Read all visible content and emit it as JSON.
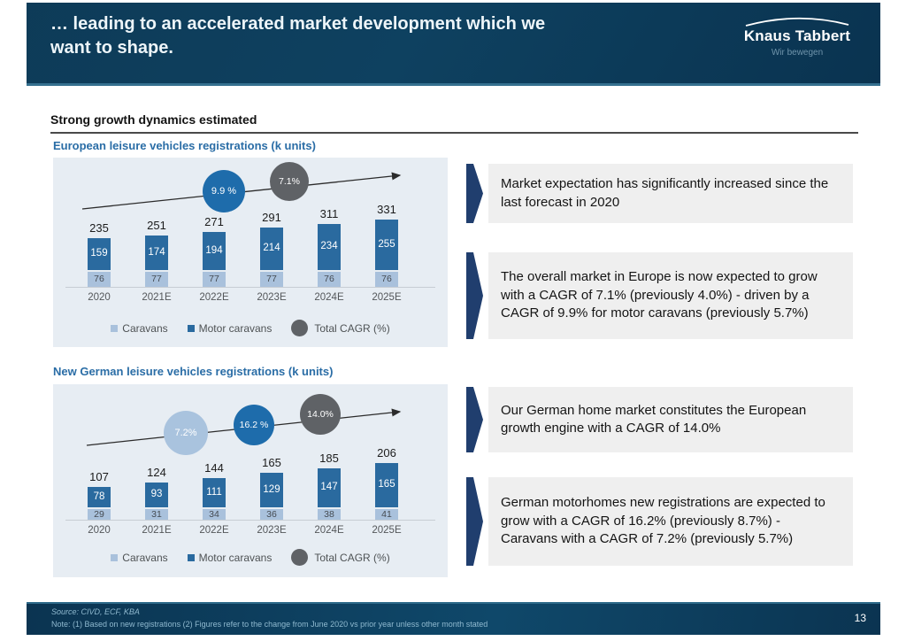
{
  "header": {
    "title_lines": [
      "… leading to an accelerated market development which we",
      "want to shape."
    ],
    "logo_name": "Knaus Tabbert",
    "logo_tagline": "Wir bewegen"
  },
  "section_headline": "Strong growth dynamics estimated",
  "chart_data": [
    {
      "type": "bar",
      "stacked": true,
      "title": "European leisure vehicles registrations (k units)",
      "categories": [
        "2020",
        "2021E",
        "2022E",
        "2023E",
        "2024E",
        "2025E"
      ],
      "series": [
        {
          "name": "Caravans",
          "color": "#a9c1dc",
          "values": [
            76,
            77,
            77,
            77,
            76,
            76
          ]
        },
        {
          "name": "Motor caravans",
          "color": "#2a6a9f",
          "values": [
            159,
            174,
            194,
            214,
            234,
            255
          ]
        }
      ],
      "totals": [
        235,
        251,
        271,
        291,
        311,
        331
      ],
      "cagr_bubbles": [
        {
          "label": "9.9 %",
          "color": "#1e6cab"
        },
        {
          "label": "7.1%",
          "color": "#5f6266"
        }
      ],
      "legend": [
        "Caravans",
        "Motor caravans",
        "Total CAGR (%)"
      ],
      "legend_position": "bottom-center",
      "grid": false
    },
    {
      "type": "bar",
      "stacked": true,
      "title": "New German leisure vehicles registrations (k units)",
      "categories": [
        "2020",
        "2021E",
        "2022E",
        "2023E",
        "2024E",
        "2025E"
      ],
      "series": [
        {
          "name": "Caravans",
          "color": "#a9c1dc",
          "values": [
            29,
            31,
            34,
            36,
            38,
            41
          ]
        },
        {
          "name": "Motor caravans",
          "color": "#2a6a9f",
          "values": [
            78,
            93,
            111,
            129,
            147,
            165
          ]
        }
      ],
      "totals": [
        107,
        124,
        144,
        165,
        185,
        206
      ],
      "cagr_bubbles": [
        {
          "label": "7.2%",
          "color": "#a9c3de"
        },
        {
          "label": "16.2 %",
          "color": "#1e6cab"
        },
        {
          "label": "14.0%",
          "color": "#5f6266"
        }
      ],
      "legend": [
        "Caravans",
        "Motor caravans",
        "Total CAGR (%)"
      ],
      "legend_position": "bottom-center",
      "grid": false
    }
  ],
  "insights": [
    {
      "text": "Market expectation has significantly increased since the last forecast in 2020"
    },
    {
      "text": "The overall market in Europe is now expected to grow with a CAGR of 7.1% (previously 4.0%) - driven by a CAGR of 9.9% for motor caravans (previously 5.7%)"
    },
    {
      "text": "Our German home market constitutes the European growth engine with a CAGR of 14.0%"
    },
    {
      "text": "German motorhomes new registrations are expected to grow with a CAGR of 16.2% (previously 8.7%) - Caravans with a CAGR of 7.2% (previously 5.7%)"
    }
  ],
  "footer": {
    "source": "Source: CIVD, ECF, KBA",
    "note": "Note: (1) Based on new registrations (2) Figures refer to the change from June 2020 vs prior year unless other month stated",
    "page_number": "13"
  },
  "colors": {
    "header_bg": "#0d3a57",
    "title_text": "#edf5f9",
    "chart_title_blue": "#2a6da6",
    "dark_bar": "#2a6a9f",
    "light_bar": "#a9c1dc",
    "blue_bubble": "#1e6cab",
    "gray_bubble": "#5f6266",
    "light_bubble": "#a9c3de",
    "panel_bg": "#e7edf3",
    "insight_box_bg": "#efefef",
    "chevron_navy": "#203e6e"
  }
}
